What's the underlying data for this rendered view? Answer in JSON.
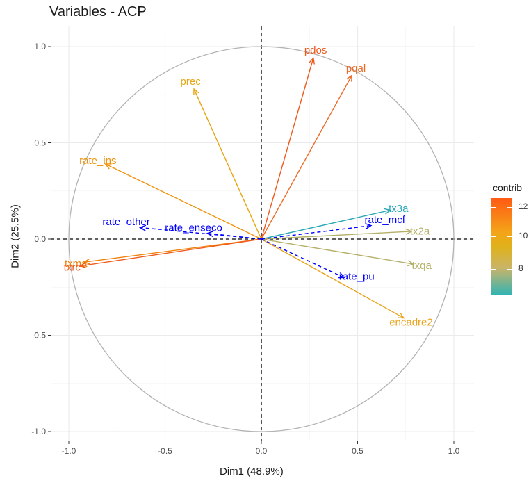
{
  "chart_data": {
    "type": "scatter",
    "title": "Variables - ACP",
    "xlabel": "Dim1 (48.9%)",
    "ylabel": "Dim2 (25.5%)",
    "xlim": [
      -1.1,
      1.1
    ],
    "ylim": [
      -1.05,
      1.05
    ],
    "x_ticks": [
      -1.0,
      -0.5,
      0.0,
      0.5,
      1.0
    ],
    "x_tick_labels": [
      "-1.0",
      "-0.5",
      "0.0",
      "0.5",
      "1.0"
    ],
    "y_ticks": [
      -1.0,
      -0.5,
      0.0,
      0.5,
      1.0
    ],
    "y_tick_labels": [
      "-1.0",
      "-0.5",
      "0.0",
      "0.5",
      "1.0"
    ],
    "grid": true,
    "unit_circle": true,
    "colors": {
      "high": "#ff5a14",
      "mid": "#f4a418",
      "low": "#2fb3b3",
      "supplementary": "#0000ff"
    },
    "variables": [
      {
        "name": "pdos",
        "x": 0.27,
        "y": 0.94,
        "contrib": 12.5,
        "color": "#f0581b"
      },
      {
        "name": "pqal",
        "x": 0.47,
        "y": 0.85,
        "contrib": 12.0,
        "color": "#ec6a25"
      },
      {
        "name": "prec",
        "x": -0.35,
        "y": 0.78,
        "contrib": 10.0,
        "color": "#e6a611"
      },
      {
        "name": "rate_ins",
        "x": -0.81,
        "y": 0.39,
        "contrib": 11.0,
        "color": "#f0920e"
      },
      {
        "name": "tx3a",
        "x": 0.67,
        "y": 0.15,
        "contrib": 6.5,
        "color": "#2ba8b6"
      },
      {
        "name": "tx2a",
        "x": 0.78,
        "y": 0.04,
        "contrib": 8.0,
        "color": "#b5b068"
      },
      {
        "name": "txqa",
        "x": 0.79,
        "y": -0.13,
        "contrib": 8.0,
        "color": "#b5b068"
      },
      {
        "name": "encadre2",
        "x": 0.74,
        "y": -0.41,
        "contrib": 10.0,
        "color": "#e9a31b"
      },
      {
        "name": "txma",
        "x": -0.92,
        "y": -0.12,
        "contrib": 11.5,
        "color": "#f0820a"
      },
      {
        "name": "txrc",
        "x": -0.94,
        "y": -0.14,
        "contrib": 12.5,
        "color": "#ef5b1c"
      }
    ],
    "supplementary": [
      {
        "name": "rate_other",
        "x": -0.63,
        "y": 0.06
      },
      {
        "name": "rate_enseco",
        "x": -0.28,
        "y": 0.03
      },
      {
        "name": "rate_mcf",
        "x": 0.57,
        "y": 0.07
      },
      {
        "name": "rate_pu",
        "x": 0.43,
        "y": -0.2
      }
    ],
    "legend": {
      "title": "contrib",
      "position": "right",
      "ticks": [
        "12",
        "10",
        "8"
      ]
    }
  }
}
